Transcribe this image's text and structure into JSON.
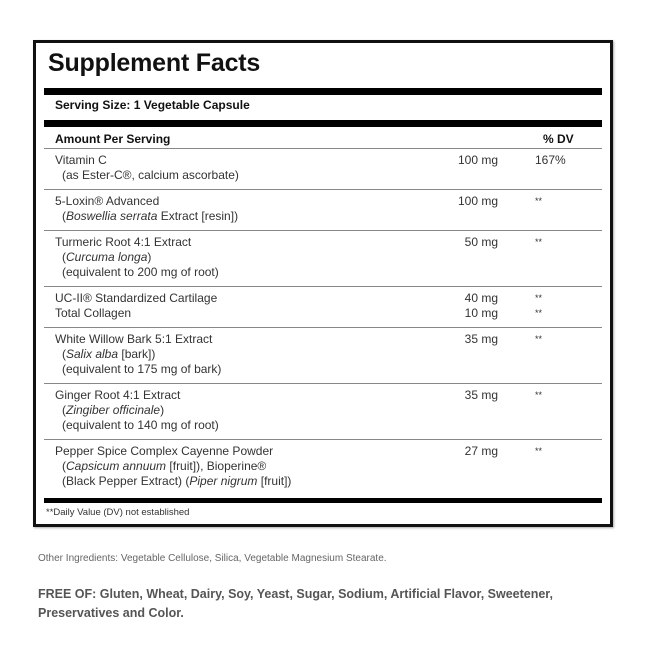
{
  "title": "Supplement Facts",
  "serving_size": "Serving Size: 1 Vegetable Capsule",
  "header": {
    "amount": "Amount Per Serving",
    "dv": "% DV"
  },
  "rows": [
    {
      "lines": [
        {
          "segs": [
            {
              "t": "Vitamin C"
            }
          ],
          "amount": "100 mg",
          "dv": "167%"
        },
        {
          "sub": true,
          "segs": [
            {
              "t": "(as Ester-C®, calcium ascorbate)"
            }
          ]
        }
      ]
    },
    {
      "lines": [
        {
          "segs": [
            {
              "t": "5-Loxin® Advanced"
            }
          ],
          "amount": "100 mg",
          "dv": "**"
        },
        {
          "sub": true,
          "segs": [
            {
              "t": "("
            },
            {
              "t": "Boswellia serrata",
              "i": true
            },
            {
              "t": " Extract [resin])"
            }
          ]
        }
      ]
    },
    {
      "lines": [
        {
          "segs": [
            {
              "t": "Turmeric Root 4:1 Extract"
            }
          ],
          "amount": "50 mg",
          "dv": "**"
        },
        {
          "sub": true,
          "segs": [
            {
              "t": "("
            },
            {
              "t": "Curcuma longa",
              "i": true
            },
            {
              "t": ")"
            }
          ]
        },
        {
          "sub": true,
          "segs": [
            {
              "t": "(equivalent to 200 mg of root)"
            }
          ]
        }
      ]
    },
    {
      "lines": [
        {
          "segs": [
            {
              "t": "UC-II® Standardized Cartilage"
            }
          ],
          "amount": "40 mg",
          "dv": "**"
        },
        {
          "segs": [
            {
              "t": "Total Collagen"
            }
          ],
          "amount": "10 mg",
          "dv": "**"
        }
      ]
    },
    {
      "lines": [
        {
          "segs": [
            {
              "t": "White Willow Bark 5:1 Extract"
            }
          ],
          "amount": "35 mg",
          "dv": "**"
        },
        {
          "sub": true,
          "segs": [
            {
              "t": "("
            },
            {
              "t": "Salix alba",
              "i": true
            },
            {
              "t": " [bark])"
            }
          ]
        },
        {
          "sub": true,
          "segs": [
            {
              "t": "(equivalent to 175 mg of bark)"
            }
          ]
        }
      ]
    },
    {
      "lines": [
        {
          "segs": [
            {
              "t": "Ginger Root 4:1 Extract"
            }
          ],
          "amount": "35 mg",
          "dv": "**"
        },
        {
          "sub": true,
          "segs": [
            {
              "t": "("
            },
            {
              "t": "Zingiber officinale",
              "i": true
            },
            {
              "t": ")"
            }
          ]
        },
        {
          "sub": true,
          "segs": [
            {
              "t": "(equivalent to 140 mg of root)"
            }
          ]
        }
      ]
    },
    {
      "lines": [
        {
          "segs": [
            {
              "t": "Pepper Spice Complex Cayenne Powder"
            }
          ],
          "amount": "27 mg",
          "dv": "**"
        },
        {
          "sub": true,
          "segs": [
            {
              "t": "("
            },
            {
              "t": "Capsicum annuum",
              "i": true
            },
            {
              "t": " [fruit]), Bioperine®"
            }
          ]
        },
        {
          "sub": true,
          "segs": [
            {
              "t": "(Black Pepper Extract) ("
            },
            {
              "t": "Piper nigrum",
              "i": true
            },
            {
              "t": " [fruit])"
            }
          ]
        }
      ]
    }
  ],
  "footnote": "**Daily Value (DV) not established",
  "other_ingredients": "Other Ingredients: Vegetable Cellulose, Silica, Vegetable Magnesium Stearate.",
  "free_of": "FREE OF: Gluten, Wheat, Dairy, Soy, Yeast, Sugar, Sodium, Artificial Flavor, Sweetener, Preservatives and Color."
}
